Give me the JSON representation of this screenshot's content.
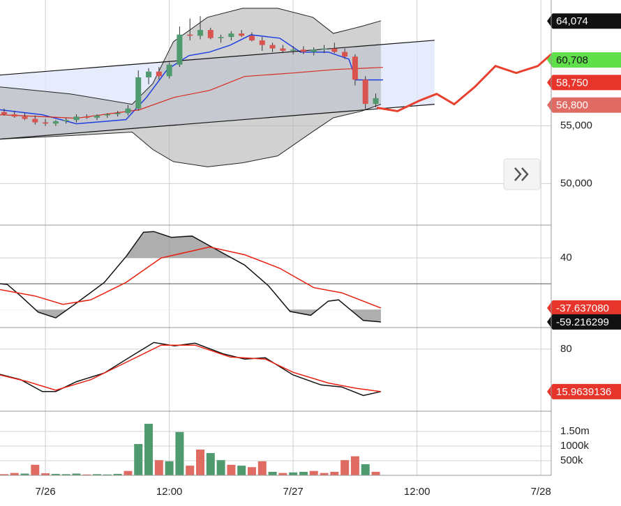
{
  "chart_data": [
    {
      "type": "candlestick",
      "xlim": [
        -4.4,
        49
      ],
      "ylim": [
        46400,
        65900
      ],
      "yticks": [
        {
          "value": 50000,
          "label": "50,000"
        },
        {
          "value": 55000,
          "label": "55,000"
        }
      ],
      "up_color": "#4f9a6f",
      "down_color": "#d9534f",
      "x": [
        -4,
        -3,
        -2,
        -1,
        0,
        1,
        2,
        3,
        4,
        5,
        6,
        7,
        8,
        9,
        10,
        11,
        12,
        13,
        14,
        15,
        16,
        17,
        18,
        19,
        20,
        21,
        22,
        23,
        24,
        25,
        26,
        27,
        28,
        29,
        30,
        31,
        32
      ],
      "open": [
        56200,
        56000,
        55800,
        55600,
        55300,
        55200,
        55400,
        55500,
        55800,
        55700,
        55900,
        56000,
        56100,
        56500,
        59200,
        59700,
        59300,
        60300,
        62900,
        62800,
        63300,
        62600,
        62700,
        63000,
        62800,
        62400,
        62000,
        61700,
        61500,
        61600,
        61400,
        61600,
        61700,
        61400,
        61000,
        59000,
        56900
      ],
      "high": [
        56500,
        56300,
        56100,
        55900,
        55600,
        55500,
        55700,
        56000,
        56000,
        56000,
        56100,
        56300,
        56800,
        59800,
        60000,
        60100,
        60500,
        63600,
        64300,
        64500,
        63500,
        62900,
        63200,
        63300,
        63100,
        62700,
        62200,
        62000,
        61900,
        61900,
        61800,
        62000,
        62200,
        61700,
        61200,
        59300,
        57800
      ],
      "low": [
        55900,
        55700,
        55500,
        55100,
        55000,
        55000,
        55200,
        55300,
        55600,
        55500,
        55700,
        55800,
        55900,
        56300,
        58600,
        59000,
        59100,
        60100,
        62400,
        62500,
        62500,
        62200,
        62400,
        62700,
        62300,
        61500,
        61400,
        61300,
        61200,
        61200,
        61100,
        61300,
        61300,
        60800,
        58500,
        56400,
        56600
      ],
      "close": [
        56000,
        55800,
        55600,
        55300,
        55200,
        55400,
        55500,
        55800,
        55700,
        55900,
        56000,
        56100,
        56500,
        59200,
        59700,
        59300,
        60300,
        62900,
        62800,
        63300,
        62600,
        62700,
        63000,
        62800,
        62400,
        62000,
        61700,
        61500,
        61600,
        61400,
        61600,
        61700,
        61400,
        61000,
        59000,
        56900,
        57400
      ],
      "band": {
        "color": "#b3b3b3",
        "x": [
          -4.4,
          2.4,
          8.4,
          10.4,
          12.4,
          15.7,
          19.1,
          22.5,
          25.9,
          27.9,
          30.6,
          32.5
        ],
        "upper": [
          58370,
          57770,
          56870,
          58670,
          62290,
          64400,
          65180,
          65180,
          64400,
          63010,
          63610,
          64100
        ],
        "lower": [
          53850,
          54160,
          54460,
          52950,
          51900,
          51450,
          51800,
          52400,
          54500,
          55700,
          56270,
          56870
        ]
      },
      "series": [
        {
          "color": "#1f3fe0",
          "width": 1.5,
          "x": [
            -4.4,
            -0.3,
            3.0,
            7.8,
            9.8,
            11.8,
            13.9,
            15.9,
            17.9,
            19.9,
            22.7,
            24.7,
            27.4,
            29.4,
            30.1,
            32.7
          ],
          "values": [
            56390,
            55960,
            55180,
            55540,
            57470,
            59880,
            61080,
            61390,
            61990,
            62890,
            62590,
            61390,
            61390,
            60780,
            58980,
            58980
          ]
        },
        {
          "color": "#d62a1e",
          "width": 1.2,
          "x": [
            -4.4,
            3.0,
            9.1,
            12.5,
            15.9,
            19.3,
            24.0,
            28.1,
            32.7
          ],
          "values": [
            55960,
            55660,
            56390,
            57470,
            58070,
            59280,
            59580,
            59880,
            60060
          ]
        },
        {
          "color": "#111111",
          "width": 1.2,
          "x": [
            -4.4,
            37.7
          ],
          "values": [
            59400,
            62410
          ]
        },
        {
          "color": "#111111",
          "width": 1.2,
          "x": [
            -4.4,
            37.7
          ],
          "values": [
            53850,
            56870
          ]
        },
        {
          "color": "#e8402f",
          "width": 3,
          "x": [
            32.1,
            34.1,
            36.2,
            37.9,
            39.6,
            41.6,
            43.6,
            45.6,
            47.7,
            49.0
          ],
          "values": [
            56570,
            56270,
            57170,
            57770,
            56870,
            58370,
            60180,
            59580,
            60180,
            61200
          ]
        }
      ],
      "price_labels": [
        {
          "value": 64074,
          "label": "64,074",
          "color": "#111111",
          "text_color": "#ffffff"
        },
        {
          "value": 60708,
          "label": "60,708",
          "color": "#5fe04a",
          "text_color": "#111111"
        },
        {
          "value": 58750,
          "label": "58,750",
          "color": "#e8352b",
          "text_color": "#ffffff"
        },
        {
          "value": 56800,
          "label": "56,800",
          "color": "#e06b63",
          "text_color": "#ffffff"
        }
      ]
    },
    {
      "type": "line",
      "xlim": [
        -4.4,
        49
      ],
      "ylim": [
        -68,
        91
      ],
      "yticks": [
        40
      ],
      "zero_line": 0,
      "fill_levels": [
        40,
        -40
      ],
      "series": [
        {
          "color": "#111111",
          "x": [
            -4.4,
            -3.7,
            -2.4,
            -0.7,
            1.0,
            3.0,
            5.7,
            7.8,
            9.5,
            10.5,
            12.2,
            14.2,
            15.9,
            19.3,
            21.6,
            23.7,
            25.7,
            27.4,
            28.4,
            30.8,
            32.5
          ],
          "values": [
            0,
            -1,
            -19,
            -44,
            -53,
            -30,
            2,
            42,
            80,
            81,
            72,
            74,
            59,
            29,
            -3,
            -43,
            -49,
            -27,
            -25,
            -57,
            -59.216299
          ]
        },
        {
          "color": "#e8200f",
          "x": [
            -4.4,
            -1.0,
            1.7,
            4.4,
            7.8,
            11.2,
            15.9,
            19.3,
            22.7,
            26.0,
            28.7,
            32.5
          ],
          "values": [
            -9,
            -19,
            -32,
            -25,
            2,
            40,
            57,
            45,
            24,
            -6,
            -14,
            -37.63708
          ]
        }
      ],
      "price_labels": [
        {
          "value": -37.63708,
          "label": "-37.637080",
          "color": "#e8352b",
          "text_color": "#ffffff"
        },
        {
          "value": -59.216299,
          "label": "-59.216299",
          "color": "#111111",
          "text_color": "#ffffff"
        }
      ]
    },
    {
      "type": "line",
      "xlim": [
        -4.4,
        49
      ],
      "ylim": [
        -13.6,
        112.5
      ],
      "yticks": [
        80
      ],
      "series": [
        {
          "color": "#111111",
          "x": [
            -4.4,
            -2.4,
            -0.3,
            1.0,
            3.0,
            5.7,
            8.5,
            10.5,
            12.5,
            14.5,
            17.2,
            19.3,
            21.3,
            24.0,
            26.7,
            28.7,
            30.8,
            32.5
          ],
          "values": [
            42,
            34,
            16,
            16,
            31,
            44,
            71,
            90,
            85,
            89,
            73,
            65,
            67,
            41,
            26,
            23,
            10,
            16
          ]
        },
        {
          "color": "#e8200f",
          "x": [
            -4.4,
            -1.7,
            1.0,
            4.4,
            7.8,
            11.2,
            14.5,
            17.9,
            21.3,
            24.0,
            27.4,
            30.1,
            32.5
          ],
          "values": [
            41,
            31,
            18,
            34,
            60,
            86,
            86,
            68,
            65,
            45,
            29,
            21,
            15.9639136
          ]
        }
      ],
      "price_labels": [
        {
          "value": 15.9639136,
          "label": "15.9639136",
          "color": "#e8352b",
          "text_color": "#ffffff"
        }
      ]
    },
    {
      "type": "bar",
      "xlim": [
        -4.4,
        49
      ],
      "ylim": [
        0,
        2190000
      ],
      "yticks": [
        {
          "value": 500000,
          "label": "500k"
        },
        {
          "value": 1000000,
          "label": "1000k"
        },
        {
          "value": 1500000,
          "label": "1.50m"
        }
      ],
      "xticks": [
        {
          "value": 0,
          "label": "7/26"
        },
        {
          "value": 12,
          "label": "12:00"
        },
        {
          "value": 24,
          "label": "7/27"
        },
        {
          "value": 36,
          "label": "12:00"
        },
        {
          "value": 48,
          "label": "7/28"
        }
      ],
      "x": [
        -4,
        -3,
        -2,
        -1,
        0,
        1,
        2,
        3,
        4,
        5,
        6,
        7,
        8,
        9,
        10,
        11,
        12,
        13,
        14,
        15,
        16,
        17,
        18,
        19,
        20,
        21,
        22,
        23,
        24,
        25,
        26,
        27,
        28,
        29,
        30,
        31,
        32
      ],
      "values": [
        40000,
        80000,
        60000,
        360000,
        70000,
        50000,
        40000,
        60000,
        30000,
        40000,
        30000,
        50000,
        150000,
        1070000,
        1760000,
        520000,
        480000,
        1480000,
        330000,
        880000,
        760000,
        520000,
        360000,
        330000,
        280000,
        480000,
        120000,
        80000,
        100000,
        120000,
        150000,
        80000,
        120000,
        520000,
        650000,
        380000,
        120000
      ],
      "colors": [
        "#e06b63",
        "#e06b63",
        "#4f9a6f",
        "#e06b63",
        "#e06b63",
        "#4f9a6f",
        "#4f9a6f",
        "#4f9a6f",
        "#e06b63",
        "#4f9a6f",
        "#4f9a6f",
        "#4f9a6f",
        "#e06b63",
        "#4f9a6f",
        "#4f9a6f",
        "#e06b63",
        "#4f9a6f",
        "#4f9a6f",
        "#e06b63",
        "#e06b63",
        "#4f9a6f",
        "#4f9a6f",
        "#e06b63",
        "#4f9a6f",
        "#e06b63",
        "#e06b63",
        "#4f9a6f",
        "#e06b63",
        "#4f9a6f",
        "#4f9a6f",
        "#e06b63",
        "#e06b63",
        "#e06b63",
        "#e06b63",
        "#e06b63",
        "#4f9a6f",
        "#e06b63"
      ]
    }
  ]
}
